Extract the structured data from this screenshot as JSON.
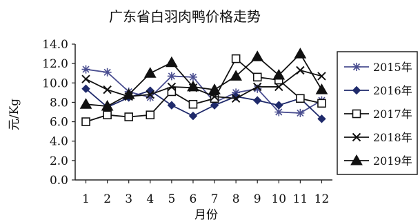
{
  "chart_data": {
    "type": "line",
    "title": "广东省白羽肉鸭价格走势",
    "xlabel": "月份",
    "ylabel": "元/Kg",
    "x": [
      1,
      2,
      3,
      4,
      5,
      6,
      7,
      8,
      9,
      10,
      11,
      12
    ],
    "x_tick_labels": [
      "1",
      "2",
      "3",
      "4",
      "5",
      "6",
      "7",
      "8",
      "9",
      "10",
      "11",
      "12"
    ],
    "ylim": [
      0,
      14
    ],
    "y_ticks": [
      0,
      2,
      4,
      6,
      8,
      10,
      12,
      14
    ],
    "y_tick_labels": [
      "0.0",
      "2.0",
      "4.0",
      "6.0",
      "8.0",
      "10.0",
      "12.0",
      "14.0"
    ],
    "grid": false,
    "legend_position": "right",
    "series": [
      {
        "name": "2015年",
        "marker": "asterisk",
        "values": [
          11.4,
          11.1,
          9.1,
          8.5,
          10.7,
          10.6,
          8.0,
          9.0,
          9.4,
          7.0,
          6.9,
          8.2
        ]
      },
      {
        "name": "2016年",
        "marker": "diamond",
        "values": [
          9.4,
          7.5,
          8.5,
          9.2,
          7.7,
          6.6,
          7.7,
          8.6,
          8.2,
          7.7,
          8.4,
          6.3
        ]
      },
      {
        "name": "2017年",
        "marker": "open-square",
        "values": [
          6.0,
          6.7,
          6.5,
          6.7,
          9.1,
          7.8,
          8.4,
          12.5,
          10.6,
          10.3,
          8.4,
          7.9
        ]
      },
      {
        "name": "2018年",
        "marker": "x",
        "values": [
          10.4,
          9.3,
          8.6,
          8.8,
          9.6,
          9.5,
          8.6,
          8.4,
          9.6,
          9.6,
          11.3,
          10.7
        ]
      },
      {
        "name": "2019年",
        "marker": "filled-triangle",
        "values": [
          7.8,
          7.6,
          8.8,
          11.0,
          12.1,
          9.6,
          9.3,
          10.7,
          12.7,
          10.8,
          13.0,
          9.3
        ]
      }
    ]
  }
}
